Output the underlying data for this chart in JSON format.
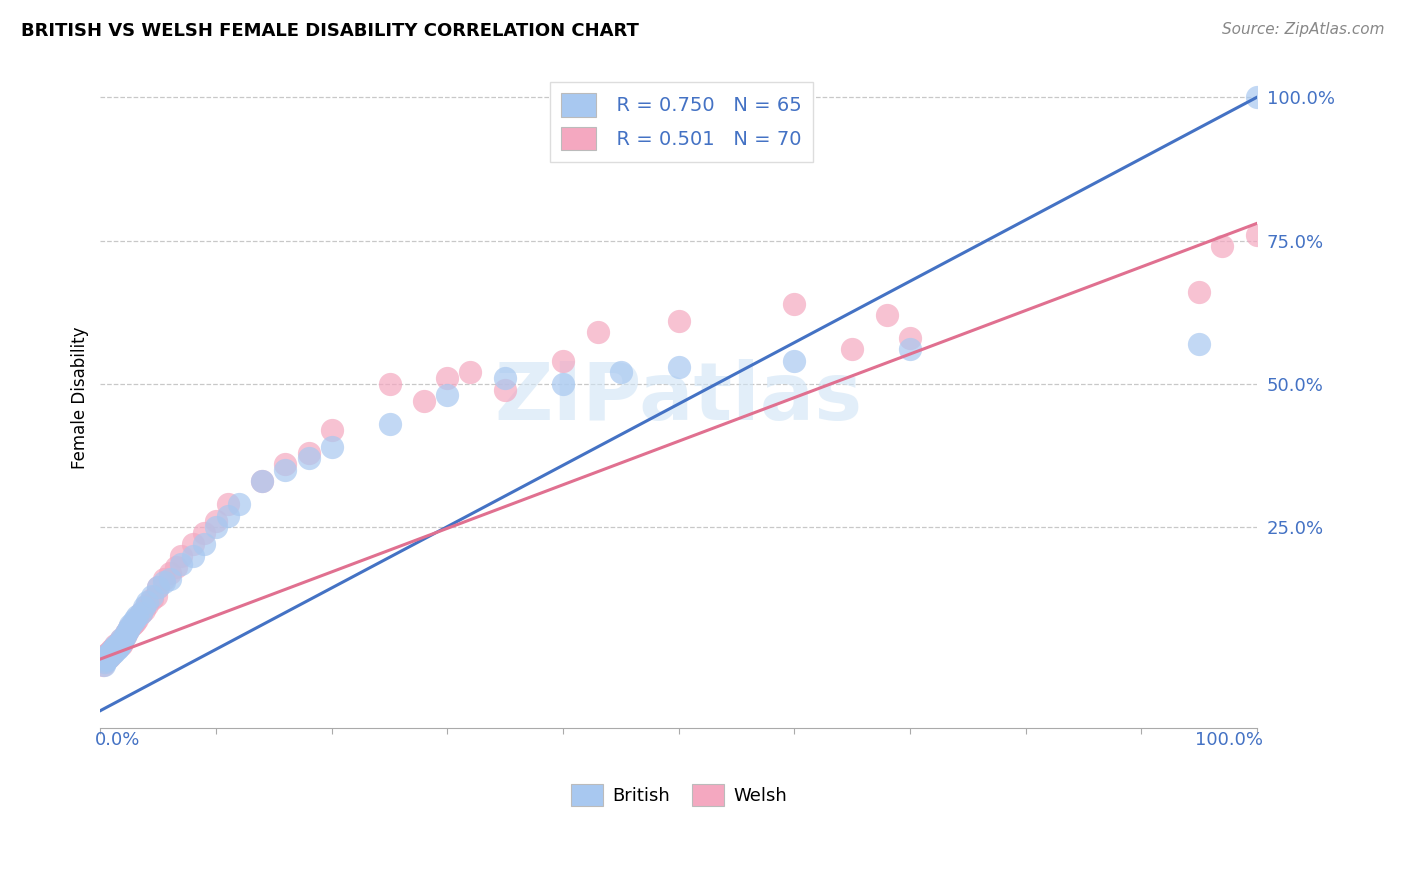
{
  "title": "BRITISH VS WELSH FEMALE DISABILITY CORRELATION CHART",
  "source": "Source: ZipAtlas.com",
  "ylabel": "Female Disability",
  "y_tick_labels": [
    "25.0%",
    "50.0%",
    "75.0%",
    "100.0%"
  ],
  "y_tick_positions": [
    0.25,
    0.5,
    0.75,
    1.0
  ],
  "legend_british_r": "R = 0.750",
  "legend_british_n": "N = 65",
  "legend_welsh_r": "R = 0.501",
  "legend_welsh_n": "N = 70",
  "british_color": "#a8c8f0",
  "welsh_color": "#f4a8c0",
  "british_line_color": "#4472c4",
  "welsh_line_color": "#e07090",
  "watermark": "ZIPatlas",
  "brit_line_x0": 0.0,
  "brit_line_y0": -0.07,
  "brit_line_x1": 1.0,
  "brit_line_y1": 1.0,
  "welsh_line_x0": 0.0,
  "welsh_line_y0": 0.02,
  "welsh_line_x1": 1.0,
  "welsh_line_y1": 0.78,
  "xlim": [
    0.0,
    1.0
  ],
  "ylim": [
    -0.1,
    1.05
  ],
  "brit_x": [
    0.003,
    0.004,
    0.005,
    0.005,
    0.006,
    0.006,
    0.007,
    0.007,
    0.008,
    0.008,
    0.009,
    0.009,
    0.01,
    0.01,
    0.011,
    0.011,
    0.012,
    0.012,
    0.013,
    0.013,
    0.014,
    0.015,
    0.015,
    0.016,
    0.016,
    0.017,
    0.018,
    0.018,
    0.019,
    0.02,
    0.021,
    0.022,
    0.024,
    0.025,
    0.026,
    0.028,
    0.03,
    0.032,
    0.035,
    0.038,
    0.04,
    0.045,
    0.05,
    0.055,
    0.06,
    0.07,
    0.08,
    0.09,
    0.1,
    0.11,
    0.12,
    0.14,
    0.16,
    0.18,
    0.2,
    0.25,
    0.3,
    0.35,
    0.4,
    0.45,
    0.5,
    0.6,
    0.7,
    0.95,
    1.0
  ],
  "brit_y": [
    0.01,
    0.015,
    0.018,
    0.02,
    0.022,
    0.025,
    0.022,
    0.028,
    0.025,
    0.03,
    0.028,
    0.032,
    0.03,
    0.035,
    0.03,
    0.038,
    0.032,
    0.04,
    0.035,
    0.042,
    0.038,
    0.04,
    0.045,
    0.042,
    0.048,
    0.045,
    0.048,
    0.055,
    0.05,
    0.055,
    0.06,
    0.065,
    0.07,
    0.075,
    0.08,
    0.085,
    0.09,
    0.095,
    0.1,
    0.11,
    0.12,
    0.13,
    0.145,
    0.155,
    0.16,
    0.185,
    0.2,
    0.22,
    0.25,
    0.27,
    0.29,
    0.33,
    0.35,
    0.37,
    0.39,
    0.43,
    0.48,
    0.51,
    0.5,
    0.52,
    0.53,
    0.54,
    0.56,
    0.57,
    1.0
  ],
  "welsh_x": [
    0.002,
    0.003,
    0.004,
    0.005,
    0.005,
    0.006,
    0.006,
    0.007,
    0.007,
    0.008,
    0.008,
    0.009,
    0.009,
    0.01,
    0.01,
    0.011,
    0.012,
    0.012,
    0.013,
    0.013,
    0.014,
    0.015,
    0.015,
    0.016,
    0.017,
    0.018,
    0.018,
    0.019,
    0.02,
    0.021,
    0.022,
    0.023,
    0.025,
    0.027,
    0.028,
    0.03,
    0.032,
    0.035,
    0.038,
    0.04,
    0.045,
    0.048,
    0.05,
    0.055,
    0.06,
    0.065,
    0.07,
    0.08,
    0.09,
    0.1,
    0.11,
    0.14,
    0.16,
    0.18,
    0.2,
    0.25,
    0.28,
    0.3,
    0.32,
    0.35,
    0.4,
    0.43,
    0.5,
    0.6,
    0.65,
    0.68,
    0.7,
    0.95,
    0.97,
    1.0
  ],
  "welsh_y": [
    0.01,
    0.015,
    0.018,
    0.02,
    0.022,
    0.025,
    0.028,
    0.022,
    0.03,
    0.025,
    0.032,
    0.028,
    0.035,
    0.03,
    0.038,
    0.032,
    0.035,
    0.04,
    0.038,
    0.045,
    0.04,
    0.042,
    0.048,
    0.045,
    0.048,
    0.045,
    0.055,
    0.048,
    0.055,
    0.06,
    0.065,
    0.068,
    0.075,
    0.08,
    0.082,
    0.085,
    0.09,
    0.1,
    0.105,
    0.115,
    0.125,
    0.13,
    0.145,
    0.16,
    0.17,
    0.18,
    0.2,
    0.22,
    0.24,
    0.26,
    0.29,
    0.33,
    0.36,
    0.38,
    0.42,
    0.5,
    0.47,
    0.51,
    0.52,
    0.49,
    0.54,
    0.59,
    0.61,
    0.64,
    0.56,
    0.62,
    0.58,
    0.66,
    0.74,
    0.76
  ]
}
